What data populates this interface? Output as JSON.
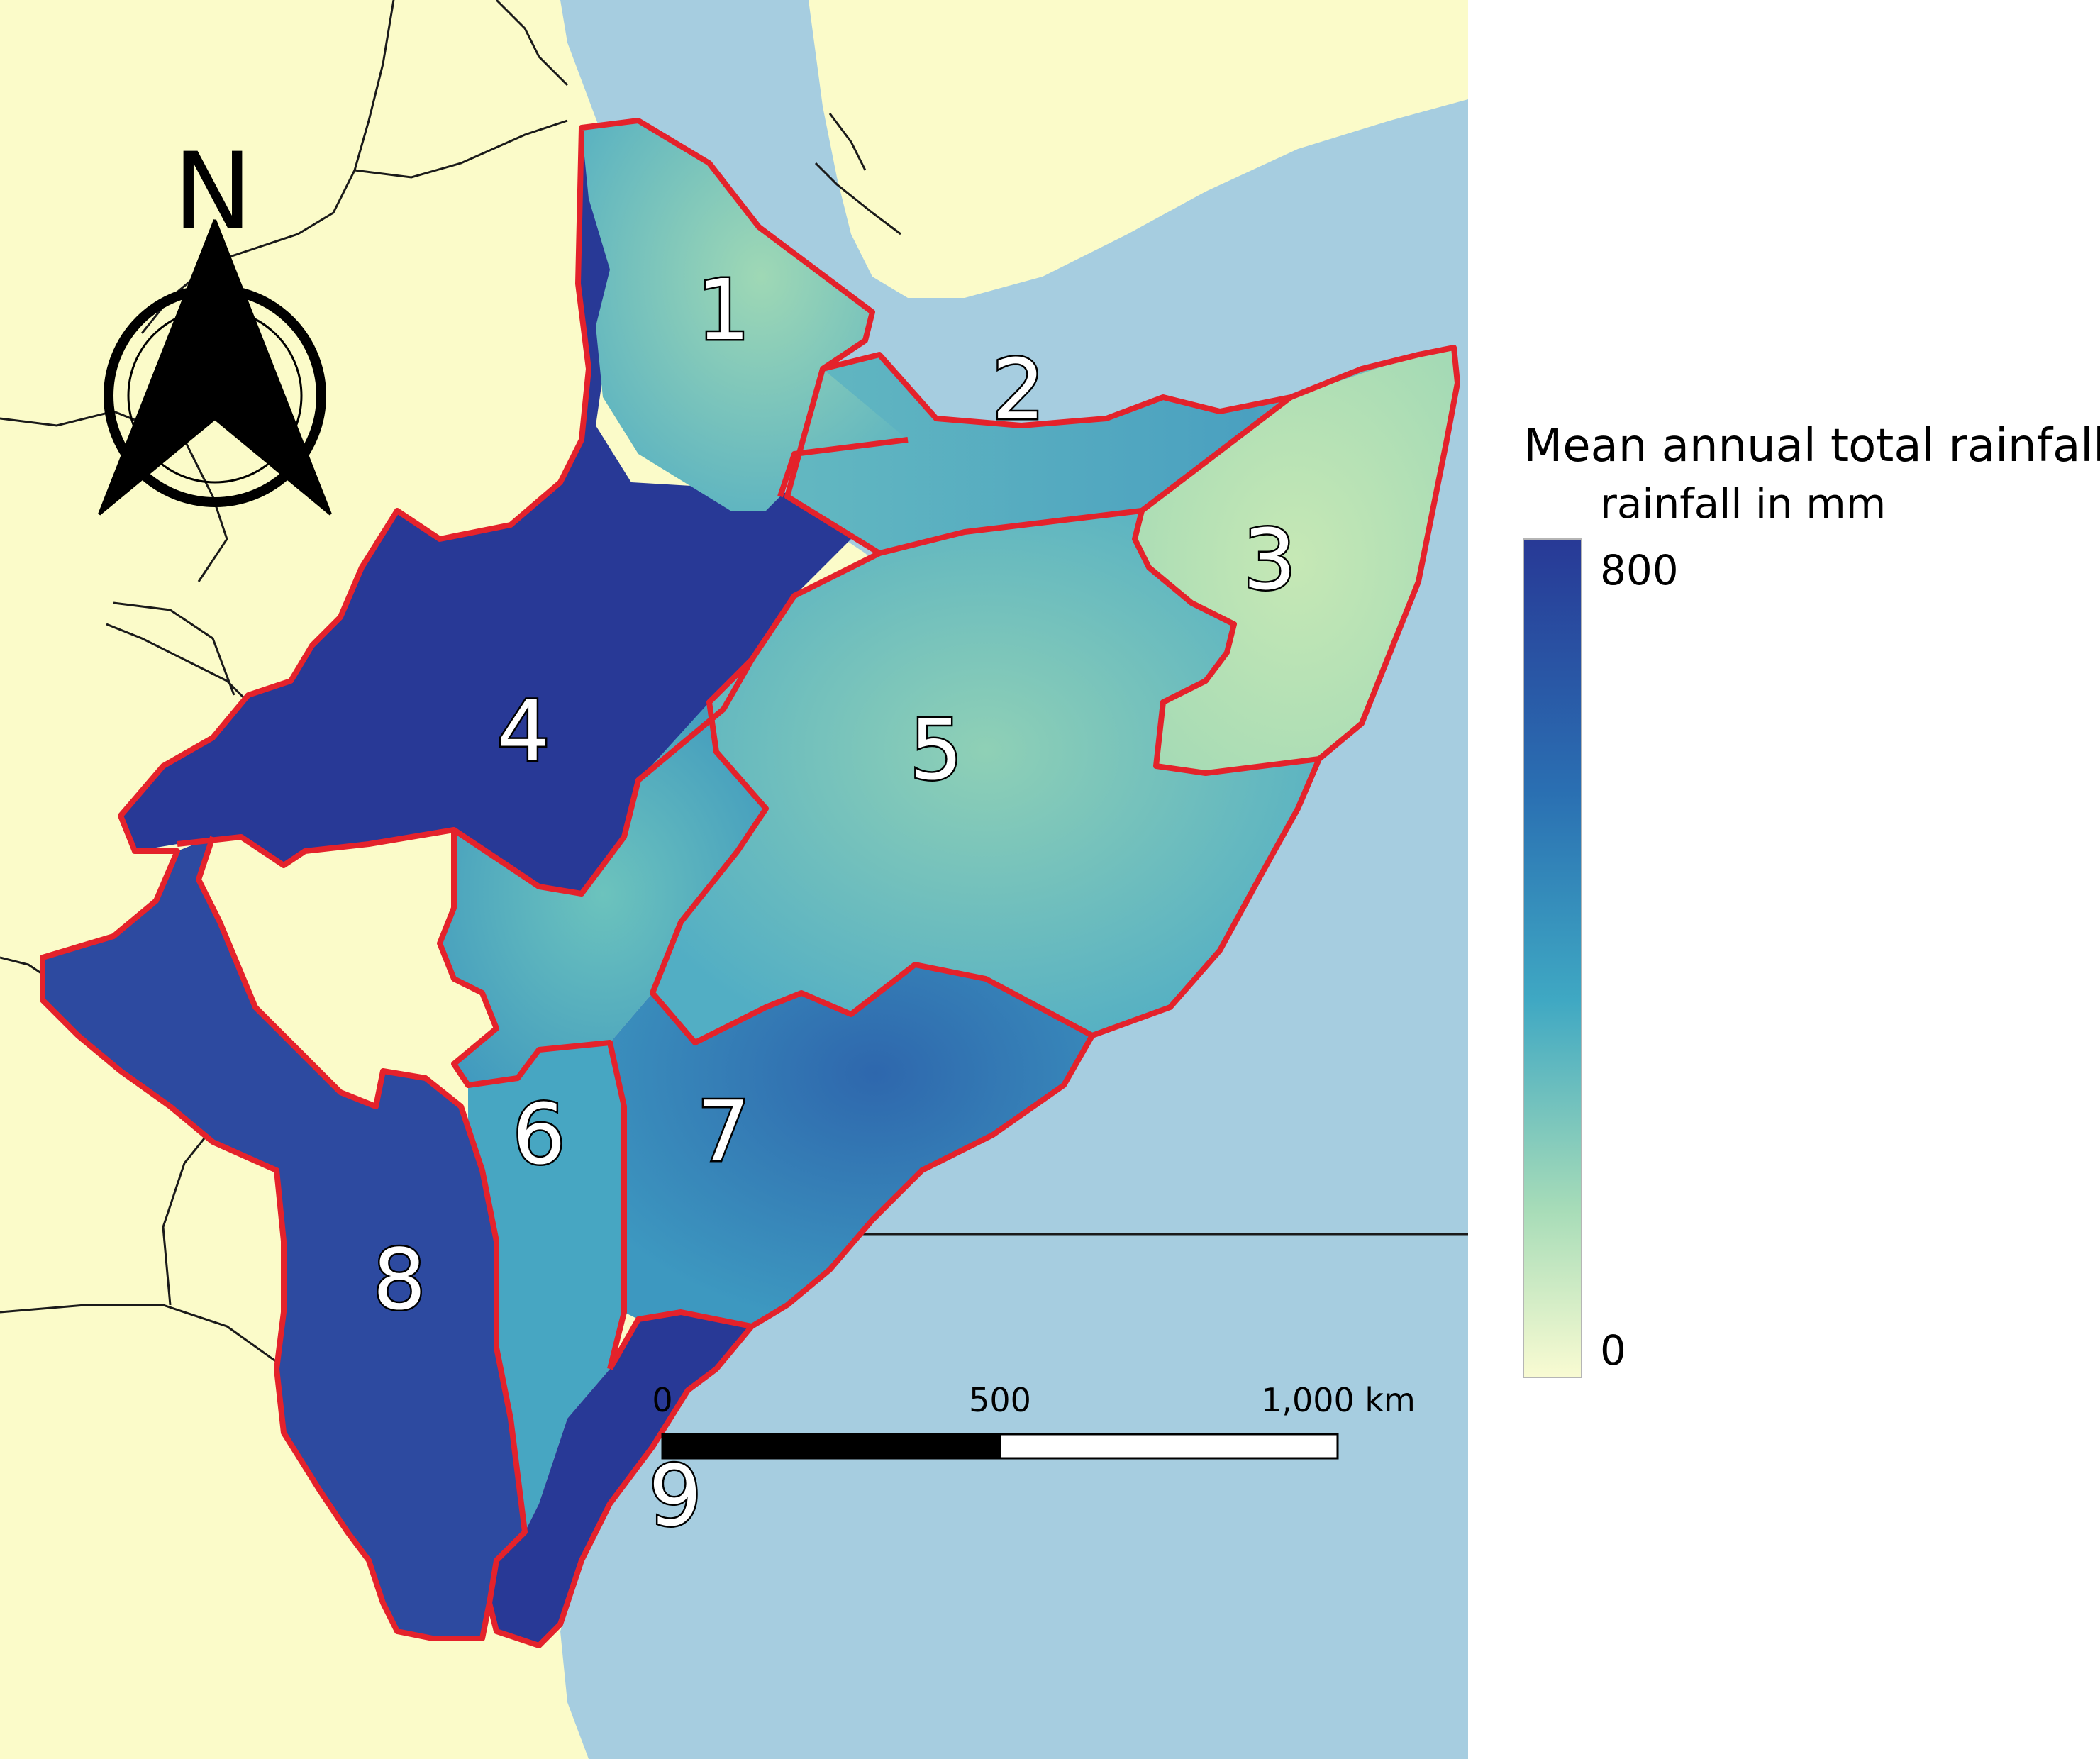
{
  "legend": {
    "title": "Mean annual total rainfall",
    "subtitle": "rainfall in mm",
    "max_label": "800",
    "min_label": "0",
    "max_value": 800,
    "min_value": 0,
    "color_max": "#283996",
    "color_mid": "#3fa8c3",
    "color_min": "#f9fbd2"
  },
  "north_arrow": {
    "letter": "N"
  },
  "scale_bar": {
    "labels": [
      "0",
      "500",
      "1,000 km"
    ]
  },
  "zones": [
    {
      "id": "1",
      "label": "1"
    },
    {
      "id": "2",
      "label": "2"
    },
    {
      "id": "3",
      "label": "3"
    },
    {
      "id": "4",
      "label": "4"
    },
    {
      "id": "5",
      "label": "5"
    },
    {
      "id": "6",
      "label": "6"
    },
    {
      "id": "7",
      "label": "7"
    },
    {
      "id": "8",
      "label": "8"
    },
    {
      "id": "9",
      "label": "9"
    }
  ],
  "colors": {
    "ocean": "#a6cde0",
    "land": "#fbfbc9",
    "zone_border": "#e4222b",
    "country_border": "#1a1a1a"
  }
}
